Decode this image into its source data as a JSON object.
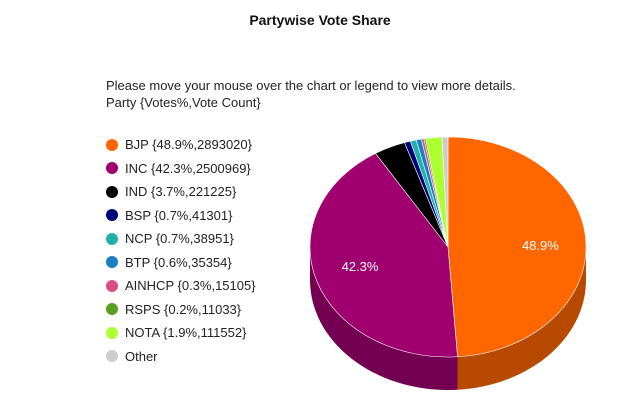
{
  "page": {
    "title": "Partywise Vote Share",
    "instructions_line1": "Please move your mouse over the chart or legend to view more details.",
    "instructions_line2": "Party {Votes%,Vote Count}"
  },
  "chart_data": {
    "type": "pie",
    "title": "Partywise Vote Share",
    "legend_position": "left",
    "slices": [
      {
        "label": "BJP {48.9%,2893020}",
        "party": "BJP",
        "percent": 48.9,
        "votes": 2893020,
        "color": "#ff6600",
        "show_label": true
      },
      {
        "label": "INC {42.3%,2500969}",
        "party": "INC",
        "percent": 42.3,
        "votes": 2500969,
        "color": "#a0006f",
        "show_label": true
      },
      {
        "label": "IND {3.7%,221225}",
        "party": "IND",
        "percent": 3.7,
        "votes": 221225,
        "color": "#000000",
        "show_label": false
      },
      {
        "label": "BSP {0.7%,41301}",
        "party": "BSP",
        "percent": 0.7,
        "votes": 41301,
        "color": "#00007a",
        "show_label": false
      },
      {
        "label": "NCP {0.7%,38951}",
        "party": "NCP",
        "percent": 0.7,
        "votes": 38951,
        "color": "#20b2aa",
        "show_label": false
      },
      {
        "label": "BTP {0.6%,35354}",
        "party": "BTP",
        "percent": 0.6,
        "votes": 35354,
        "color": "#1a7fc1",
        "show_label": false
      },
      {
        "label": "AINHCP {0.3%,15105}",
        "party": "AINHCP",
        "percent": 0.3,
        "votes": 15105,
        "color": "#d64f80",
        "show_label": false
      },
      {
        "label": "RSPS {0.2%,11033}",
        "party": "RSPS",
        "percent": 0.2,
        "votes": 11033,
        "color": "#5a9e1e",
        "show_label": false
      },
      {
        "label": "NOTA {1.9%,111552}",
        "party": "NOTA",
        "percent": 1.9,
        "votes": 111552,
        "color": "#adff2f",
        "show_label": false
      },
      {
        "label": "Other",
        "party": "Other",
        "percent": 0.7,
        "votes": null,
        "color": "#cccccc",
        "show_label": false
      }
    ]
  }
}
